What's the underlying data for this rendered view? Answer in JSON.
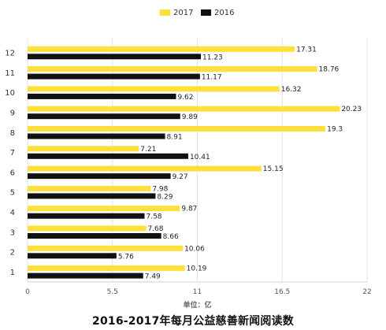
{
  "chart_data": {
    "type": "bar",
    "orientation": "horizontal",
    "categories": [
      "1",
      "2",
      "3",
      "4",
      "5",
      "6",
      "7",
      "8",
      "9",
      "10",
      "11",
      "12"
    ],
    "series": [
      {
        "name": "2017",
        "color": "#FFE03A",
        "values": [
          10.19,
          10.06,
          7.68,
          9.87,
          7.98,
          15.15,
          7.21,
          19.3,
          20.23,
          16.32,
          18.76,
          17.31
        ],
        "labels": [
          "10.19",
          "10.06",
          "7.68",
          "9.87",
          "7.98",
          "15.15",
          "7.21",
          "19.3",
          "20.23",
          "16.32",
          "18.76",
          "17.31"
        ]
      },
      {
        "name": "2016",
        "color": "#111111",
        "values": [
          7.49,
          5.76,
          8.66,
          7.58,
          8.29,
          9.27,
          10.41,
          8.91,
          9.89,
          9.62,
          11.17,
          11.23
        ],
        "labels": [
          "7.49",
          "5.76",
          "8.66",
          "7.58",
          "8.29",
          "9.27",
          "10.41",
          "8.91",
          "9.89",
          "9.62",
          "11.17",
          "11.23"
        ]
      }
    ],
    "xlim": [
      0,
      22
    ],
    "xticks": [
      0,
      5.5,
      11,
      16.5,
      22
    ],
    "xtick_labels": [
      "0",
      "5.5",
      "11",
      "16.5",
      "22"
    ],
    "xlabel": "单位：亿",
    "legend_position": "top-center",
    "grid": true
  },
  "caption": "2016-2017年每月公益慈善新闻阅读数"
}
